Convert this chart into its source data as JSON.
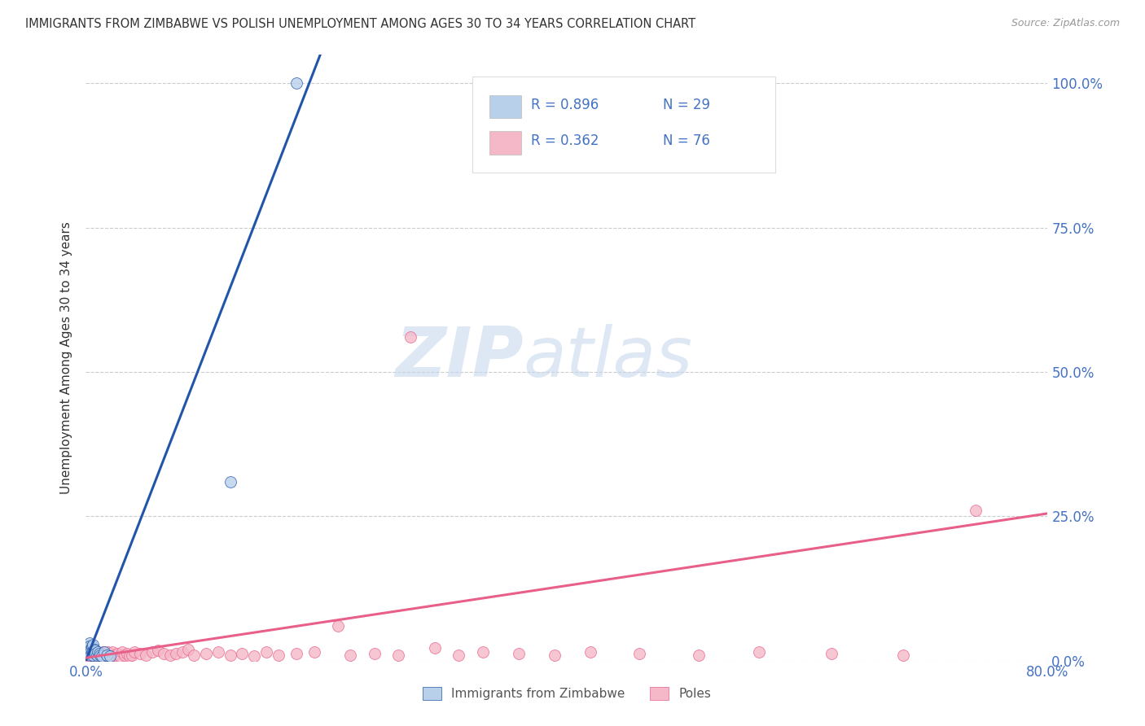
{
  "title": "IMMIGRANTS FROM ZIMBABWE VS POLISH UNEMPLOYMENT AMONG AGES 30 TO 34 YEARS CORRELATION CHART",
  "source": "Source: ZipAtlas.com",
  "ylabel": "Unemployment Among Ages 30 to 34 years",
  "xlim": [
    0.0,
    0.8
  ],
  "ylim": [
    0.0,
    1.05
  ],
  "x_tick_positions": [
    0.0,
    0.8
  ],
  "x_tick_labels": [
    "0.0%",
    "80.0%"
  ],
  "y_ticks_right": [
    0.0,
    0.25,
    0.5,
    0.75,
    1.0
  ],
  "y_tick_labels_right": [
    "0.0%",
    "25.0%",
    "50.0%",
    "75.0%",
    "100.0%"
  ],
  "zim_color": "#b8d0ea",
  "poles_color": "#f5b8c8",
  "zim_line_color": "#2255aa",
  "poles_line_color": "#e8608a",
  "axis_label_color": "#4472c4",
  "title_color": "#333333",
  "legend_text_color": "#4472c4",
  "grid_color": "#cccccc",
  "zim_scatter_x": [
    0.001,
    0.001,
    0.002,
    0.002,
    0.003,
    0.003,
    0.003,
    0.004,
    0.004,
    0.004,
    0.005,
    0.005,
    0.006,
    0.006,
    0.006,
    0.007,
    0.007,
    0.008,
    0.008,
    0.009,
    0.01,
    0.011,
    0.012,
    0.013,
    0.015,
    0.017,
    0.02,
    0.12,
    0.175
  ],
  "zim_scatter_y": [
    0.02,
    0.015,
    0.025,
    0.02,
    0.03,
    0.025,
    0.015,
    0.02,
    0.015,
    0.01,
    0.025,
    0.015,
    0.028,
    0.015,
    0.01,
    0.02,
    0.015,
    0.018,
    0.012,
    0.01,
    0.015,
    0.012,
    0.01,
    0.008,
    0.015,
    0.01,
    0.008,
    0.31,
    1.0
  ],
  "poles_scatter_x": [
    0.001,
    0.002,
    0.002,
    0.003,
    0.003,
    0.004,
    0.004,
    0.005,
    0.005,
    0.006,
    0.006,
    0.007,
    0.007,
    0.008,
    0.008,
    0.009,
    0.009,
    0.01,
    0.01,
    0.011,
    0.012,
    0.013,
    0.014,
    0.015,
    0.016,
    0.017,
    0.018,
    0.019,
    0.02,
    0.021,
    0.022,
    0.024,
    0.026,
    0.028,
    0.03,
    0.032,
    0.034,
    0.036,
    0.038,
    0.04,
    0.045,
    0.05,
    0.055,
    0.06,
    0.065,
    0.07,
    0.075,
    0.08,
    0.085,
    0.09,
    0.1,
    0.11,
    0.12,
    0.13,
    0.14,
    0.15,
    0.16,
    0.175,
    0.19,
    0.21,
    0.22,
    0.24,
    0.26,
    0.27,
    0.29,
    0.31,
    0.33,
    0.36,
    0.39,
    0.42,
    0.46,
    0.51,
    0.56,
    0.62,
    0.68,
    0.74
  ],
  "poles_scatter_y": [
    0.01,
    0.012,
    0.008,
    0.015,
    0.01,
    0.012,
    0.008,
    0.015,
    0.01,
    0.012,
    0.008,
    0.015,
    0.01,
    0.012,
    0.008,
    0.015,
    0.01,
    0.012,
    0.008,
    0.01,
    0.012,
    0.008,
    0.015,
    0.01,
    0.012,
    0.008,
    0.015,
    0.01,
    0.012,
    0.008,
    0.015,
    0.01,
    0.012,
    0.008,
    0.015,
    0.01,
    0.012,
    0.008,
    0.01,
    0.015,
    0.012,
    0.01,
    0.015,
    0.018,
    0.012,
    0.01,
    0.012,
    0.015,
    0.02,
    0.01,
    0.012,
    0.015,
    0.01,
    0.012,
    0.008,
    0.015,
    0.01,
    0.012,
    0.015,
    0.06,
    0.01,
    0.012,
    0.01,
    0.56,
    0.022,
    0.01,
    0.015,
    0.012,
    0.01,
    0.015,
    0.012,
    0.01,
    0.015,
    0.012,
    0.01,
    0.26
  ],
  "zim_line_x": [
    0.0,
    0.195
  ],
  "zim_line_y": [
    0.0,
    1.05
  ],
  "poles_line_x": [
    0.0,
    0.8
  ],
  "poles_line_y": [
    0.005,
    0.255
  ],
  "watermark_zip": "ZIP",
  "watermark_atlas": "atlas",
  "legend_items": [
    {
      "color": "#b8d0ea",
      "r_text": "R = 0.896",
      "n_text": "N = 29"
    },
    {
      "color": "#f5b8c8",
      "r_text": "R = 0.362",
      "n_text": "N = 76"
    }
  ]
}
